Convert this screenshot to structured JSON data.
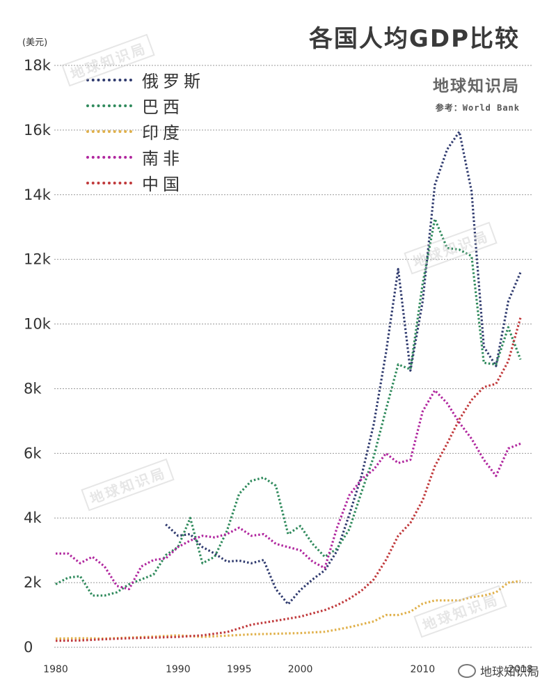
{
  "header": {
    "title": "各国人均GDP比较",
    "brand": "地球知识局",
    "source": "参考：World Bank",
    "unit": "(美元)"
  },
  "footer": {
    "text": "地球知识局",
    "icon": "wechat-icon"
  },
  "watermark": "地球知识局",
  "chart_data": {
    "type": "line",
    "title": "各国人均GDP比较",
    "ylabel": "(美元)",
    "xlabel": "",
    "xlim": [
      1980,
      2018
    ],
    "ylim": [
      0,
      18000
    ],
    "grid": true,
    "legend_position": "top-left",
    "x_ticks": [
      {
        "value": 1980,
        "label": "1980"
      },
      {
        "value": 1990,
        "label": "1990"
      },
      {
        "value": 1995,
        "label": "1995"
      },
      {
        "value": 2000,
        "label": "2000"
      },
      {
        "value": 2010,
        "label": "2010"
      },
      {
        "value": 2018,
        "label": "2018"
      }
    ],
    "y_ticks": [
      {
        "value": 0,
        "label": "0"
      },
      {
        "value": 2000,
        "label": "2k"
      },
      {
        "value": 4000,
        "label": "4k"
      },
      {
        "value": 6000,
        "label": "6k"
      },
      {
        "value": 8000,
        "label": "8k"
      },
      {
        "value": 10000,
        "label": "10k"
      },
      {
        "value": 12000,
        "label": "12k"
      },
      {
        "value": 14000,
        "label": "14k"
      },
      {
        "value": 16000,
        "label": "16k"
      },
      {
        "value": 18000,
        "label": "18k"
      }
    ],
    "series": [
      {
        "name": "俄罗斯",
        "color": "#2f3a6e",
        "x": [
          1989,
          1990,
          1991,
          1992,
          1993,
          1994,
          1995,
          1996,
          1997,
          1998,
          1999,
          2000,
          2001,
          2002,
          2003,
          2004,
          2005,
          2006,
          2007,
          2008,
          2009,
          2010,
          2011,
          2012,
          2013,
          2014,
          2015,
          2016,
          2017,
          2018
        ],
        "y": [
          3800,
          3450,
          3500,
          3100,
          2900,
          2650,
          2680,
          2600,
          2700,
          1800,
          1330,
          1770,
          2100,
          2380,
          2980,
          4100,
          5300,
          6900,
          9100,
          11700,
          8560,
          10700,
          14300,
          15400,
          15950,
          14100,
          9300,
          8700,
          10700,
          11600
        ]
      },
      {
        "name": "巴西",
        "color": "#2f8a5c",
        "x": [
          1980,
          1981,
          1982,
          1983,
          1984,
          1985,
          1986,
          1987,
          1988,
          1989,
          1990,
          1991,
          1992,
          1993,
          1994,
          1995,
          1996,
          1997,
          1998,
          1999,
          2000,
          2001,
          2002,
          2003,
          2004,
          2005,
          2006,
          2007,
          2008,
          2009,
          2010,
          2011,
          2012,
          2013,
          2014,
          2015,
          2016,
          2017,
          2018
        ],
        "y": [
          1950,
          2150,
          2200,
          1600,
          1600,
          1700,
          1950,
          2100,
          2250,
          2850,
          3100,
          4000,
          2600,
          2800,
          3600,
          4750,
          5150,
          5250,
          5000,
          3500,
          3750,
          3200,
          2800,
          3050,
          3650,
          4800,
          5900,
          7350,
          8750,
          8600,
          11250,
          13250,
          12350,
          12300,
          12100,
          8800,
          8750,
          9900,
          8900
        ]
      },
      {
        "name": "印度",
        "color": "#e0b04a",
        "x": [
          1980,
          1982,
          1984,
          1986,
          1988,
          1990,
          1992,
          1994,
          1996,
          1998,
          2000,
          2002,
          2003,
          2004,
          2005,
          2006,
          2007,
          2008,
          2009,
          2010,
          2011,
          2012,
          2013,
          2014,
          2015,
          2016,
          2017,
          2018
        ],
        "y": [
          270,
          280,
          270,
          300,
          330,
          370,
          320,
          360,
          400,
          420,
          440,
          480,
          550,
          620,
          710,
          800,
          1000,
          1000,
          1100,
          1350,
          1450,
          1450,
          1450,
          1550,
          1600,
          1700,
          2000,
          2050
        ]
      },
      {
        "name": "南非",
        "color": "#b0269e",
        "x": [
          1980,
          1981,
          1982,
          1983,
          1984,
          1985,
          1986,
          1987,
          1988,
          1989,
          1990,
          1991,
          1992,
          1993,
          1994,
          1995,
          1996,
          1997,
          1998,
          1999,
          2000,
          2001,
          2002,
          2003,
          2004,
          2005,
          2006,
          2007,
          2008,
          2009,
          2010,
          2011,
          2012,
          2013,
          2014,
          2015,
          2016,
          2017,
          2018
        ],
        "y": [
          2900,
          2900,
          2600,
          2800,
          2500,
          1900,
          1800,
          2500,
          2700,
          2750,
          3100,
          3300,
          3450,
          3400,
          3500,
          3700,
          3450,
          3500,
          3200,
          3100,
          3000,
          2650,
          2450,
          3700,
          4700,
          5200,
          5500,
          6000,
          5700,
          5800,
          7300,
          7950,
          7550,
          6950,
          6450,
          5800,
          5300,
          6150,
          6300
        ]
      },
      {
        "name": "中国",
        "color": "#c0393b",
        "x": [
          1980,
          1982,
          1984,
          1986,
          1988,
          1990,
          1992,
          1994,
          1996,
          1998,
          2000,
          2002,
          2003,
          2004,
          2005,
          2006,
          2007,
          2008,
          2009,
          2010,
          2011,
          2012,
          2013,
          2014,
          2015,
          2016,
          2017,
          2018
        ],
        "y": [
          200,
          210,
          250,
          280,
          300,
          320,
          370,
          470,
          700,
          820,
          950,
          1150,
          1300,
          1500,
          1750,
          2100,
          2700,
          3450,
          3850,
          4550,
          5600,
          6300,
          7050,
          7650,
          8050,
          8150,
          8850,
          10200
        ]
      }
    ]
  }
}
